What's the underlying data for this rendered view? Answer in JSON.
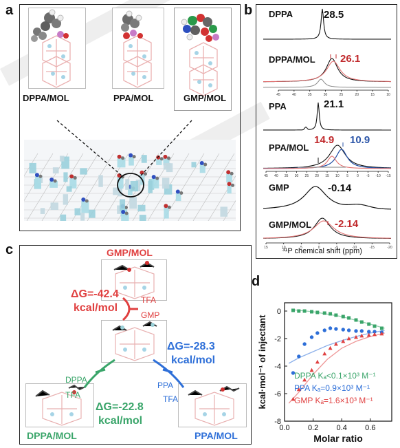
{
  "panels": {
    "a": "a",
    "b": "b",
    "c": "c",
    "d": "d"
  },
  "panel_a": {
    "labels": [
      "DPPA/MOL",
      "PPA/MOL",
      "GMP/MOL"
    ]
  },
  "panel_b": {
    "xlabel": "³¹P chemical shift (ppm)",
    "spectra": [
      {
        "name": "DPPA",
        "peak": "28.5",
        "peak_color": "#111111"
      },
      {
        "name": "DPPA/MOL",
        "peak": "26.1",
        "peak_color": "#c0282b"
      },
      {
        "name": "PPA",
        "peak": "21.1",
        "peak_color": "#111111"
      },
      {
        "name": "PPA/MOL",
        "peak": "14.9",
        "peak2": "10.9",
        "peak_color": "#c0282b",
        "peak2_color": "#2b55a8"
      },
      {
        "name": "GMP",
        "peak": "-0.14",
        "peak_color": "#111111"
      },
      {
        "name": "GMP/MOL",
        "peak": "-2.14",
        "peak_color": "#c0282b"
      }
    ],
    "ticks_top": [
      "45",
      "40",
      "35",
      "30",
      "25",
      "20",
      "15",
      "10"
    ],
    "ticks_mid": [
      "45",
      "40",
      "35",
      "30",
      "25",
      "20",
      "15",
      "10",
      "5",
      "0",
      "-5",
      "-10",
      "-15"
    ],
    "ticks_bot": [
      "15",
      "10",
      "5",
      "0",
      "-5",
      "-10",
      "-15",
      "-20"
    ]
  },
  "panel_c": {
    "title": "GMP/MOL",
    "dg_gmp": "ΔG=-42.4",
    "dg_gmp_unit": "kcal/mol",
    "tfa_top": "TFA",
    "gmp_arrow": "GMP",
    "dg_ppa": "ΔG=-28.3",
    "dg_ppa_unit": "kcal/mol",
    "ppa_arrow": "PPA",
    "tfa_right": "TFA",
    "dppa_arrow": "DPPA",
    "tfa_left": "TFA",
    "dg_dppa": "ΔG=-22.8",
    "dg_dppa_unit": "kcal/mol",
    "bottom_left": "DPPA/MOL",
    "bottom_right": "PPA/MOL",
    "colors": {
      "gmp": "#e04040",
      "ppa": "#2e6fd8",
      "dppa": "#3aa56a"
    }
  },
  "chart_data": {
    "type": "scatter",
    "ylabel": "kcal·mol⁻¹ of injectant",
    "xlabel": "Molar ratio",
    "xlim": [
      0,
      0.75
    ],
    "ylim": [
      -8,
      0.6
    ],
    "xticks": [
      "0.0",
      "0.2",
      "0.4",
      "0.6"
    ],
    "yticks": [
      "0",
      "-2",
      "-4",
      "-6",
      "-8"
    ],
    "legend": [
      {
        "name": "DPPA",
        "ka": "Kₐ<0.1×10³ M⁻¹",
        "color": "#3aa56a"
      },
      {
        "name": "PPA",
        "ka": "Kₐ=0.9×10³ M⁻¹",
        "color": "#2e6fd8"
      },
      {
        "name": "GMP",
        "ka": "Kₐ=1.6×10³ M⁻¹",
        "color": "#e04040"
      }
    ],
    "series": [
      {
        "name": "DPPA",
        "marker": "square",
        "color": "#3aa56a",
        "x": [
          0.06,
          0.1,
          0.14,
          0.19,
          0.23,
          0.28,
          0.32,
          0.36,
          0.41,
          0.45,
          0.5,
          0.54,
          0.59,
          0.63,
          0.68
        ],
        "y": [
          0.05,
          0.0,
          0.0,
          -0.05,
          -0.1,
          -0.15,
          -0.2,
          -0.3,
          -0.4,
          -0.5,
          -0.65,
          -0.8,
          -0.95,
          -1.1,
          -1.25
        ],
        "fit_x": [
          0.05,
          0.2,
          0.4,
          0.6,
          0.7
        ],
        "fit_y": [
          0.1,
          -0.05,
          -0.4,
          -0.95,
          -1.25
        ]
      },
      {
        "name": "PPA",
        "marker": "circle",
        "color": "#2e6fd8",
        "x": [
          0.06,
          0.1,
          0.14,
          0.19,
          0.23,
          0.28,
          0.32,
          0.36,
          0.41,
          0.45,
          0.5,
          0.54,
          0.59,
          0.63,
          0.68
        ],
        "y": [
          -4.5,
          -3.3,
          -2.4,
          -1.9,
          -1.6,
          -1.4,
          -1.25,
          -1.3,
          -1.35,
          -1.4,
          -1.45,
          -1.45,
          -1.5,
          -1.5,
          -1.55
        ],
        "fit_x": [
          0.03,
          0.1,
          0.2,
          0.3,
          0.4,
          0.5,
          0.6,
          0.7
        ],
        "fit_y": [
          -3.8,
          -3.4,
          -2.95,
          -2.5,
          -2.15,
          -1.85,
          -1.6,
          -1.4
        ]
      },
      {
        "name": "GMP",
        "marker": "triangle",
        "color": "#e04040",
        "x": [
          0.06,
          0.1,
          0.14,
          0.19,
          0.23,
          0.28,
          0.32,
          0.36,
          0.41,
          0.45,
          0.5,
          0.54,
          0.59,
          0.63,
          0.68
        ],
        "y": [
          -6.4,
          -5.7,
          -5.0,
          -4.3,
          -3.7,
          -3.1,
          -2.7,
          -2.4,
          -2.2,
          -2.0,
          -1.9,
          -1.8,
          -1.75,
          -1.7,
          -1.65
        ],
        "fit_x": [
          0.03,
          0.1,
          0.2,
          0.3,
          0.4,
          0.5,
          0.6,
          0.7
        ],
        "fit_y": [
          -6.7,
          -5.9,
          -4.6,
          -3.5,
          -2.7,
          -2.2,
          -1.85,
          -1.6
        ]
      }
    ]
  }
}
